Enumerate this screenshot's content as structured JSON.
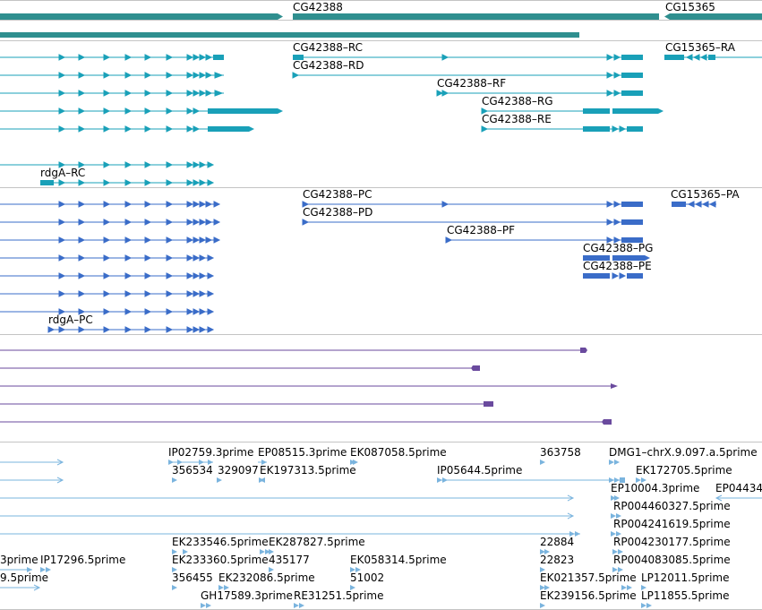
{
  "colors": {
    "gene": "#2f8f8f",
    "mrna_track1": "#19a0b8",
    "mrna_track2": "#3a6cc8",
    "track3": "#6a4a9e",
    "est": "#7ab4de",
    "separator": "#c4c4c4"
  },
  "labels": {
    "gene_cg42388": "CG42388",
    "gene_cg15365": "CG15365",
    "t1_rc": "CG42388–RC",
    "t1_rd": "CG42388–RD",
    "t1_rf": "CG42388–RF",
    "t1_rg": "CG42388–RG",
    "t1_re": "CG42388–RE",
    "t1_ra": "CG15365–RA",
    "t1_rdga": "rdgA–RC",
    "t2_pc": "CG42388–PC",
    "t2_pd": "CG42388–PD",
    "t2_pf": "CG42388–PF",
    "t2_pg": "CG42388–PG",
    "t2_pe": "CG42388–PE",
    "t2_pa": "CG15365–PA",
    "t2_rdga": "rdgA–PC",
    "e1": "IP02759.3prime",
    "e2": "EP08515.3prime",
    "e3": "EK087058.5prime",
    "e4": "363758",
    "e5": "DMG1–chrX.9.097.a.5prime",
    "e6": "356534",
    "e7": "329097",
    "e8": "EK197313.5prime",
    "e9": "IP05644.5prime",
    "e10": "EK172705.5prime",
    "e11": "EP10004.3prime",
    "e12": "EP04434",
    "e13": "RP004460327.5prime",
    "e14": "RP004241619.5prime",
    "e15": "EK233546.5prime",
    "e16": "EK287827.5prime",
    "e17": "22884",
    "e18": "RP004230177.5prime",
    "e19": "3prime",
    "e20": "IP17296.5prime",
    "e21": "EK233360.5prime",
    "e22": "435177",
    "e23": "EK058314.5prime",
    "e24": "22823",
    "e25": "RP004083085.5prime",
    "e26": "9.5prime",
    "e27": "356455",
    "e28": "EK232086.5prime",
    "e29": "51002",
    "e30": "EK021357.5prime",
    "e31": "LP12011.5prime",
    "e32": "GH17589.3prime",
    "e33": "RE31251.5prime",
    "e34": "EK239156.5prime",
    "e35": "LP11855.5prime"
  }
}
